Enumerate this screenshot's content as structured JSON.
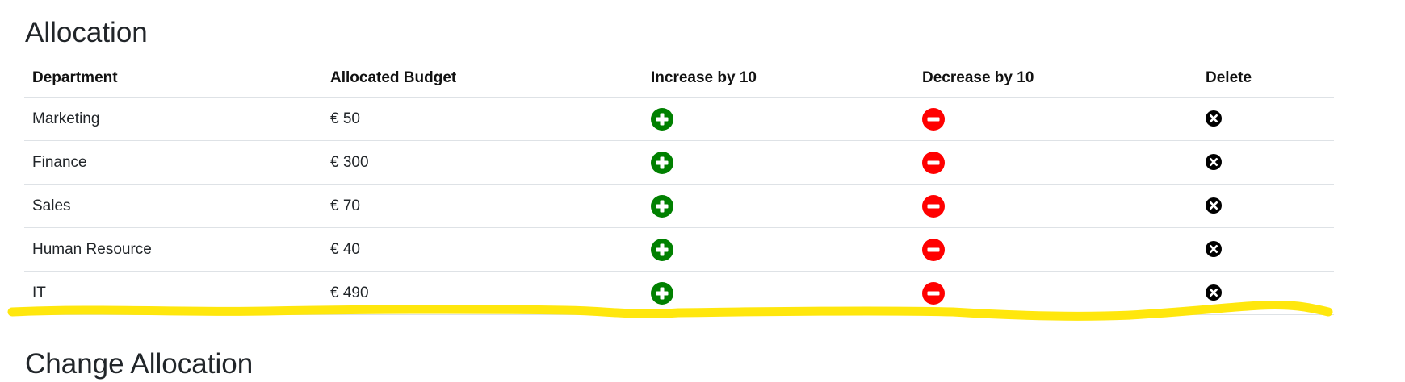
{
  "page": {
    "title": "Allocation",
    "next_section_title": "Change Allocation"
  },
  "table": {
    "headers": {
      "department": "Department",
      "budget": "Allocated Budget",
      "increase": "Increase by 10",
      "decrease": "Decrease by 10",
      "delete": "Delete"
    },
    "rows": [
      {
        "department": "Marketing",
        "budget": "€ 50"
      },
      {
        "department": "Finance",
        "budget": "€ 300"
      },
      {
        "department": "Sales",
        "budget": "€ 70"
      },
      {
        "department": "Human Resource",
        "budget": "€ 40"
      },
      {
        "department": "IT",
        "budget": "€ 490"
      }
    ]
  },
  "icons": {
    "increase": "plus-circle-icon",
    "decrease": "minus-circle-icon",
    "delete": "x-circle-icon"
  },
  "colors": {
    "increase": "#008000",
    "decrease": "#ff0000",
    "delete": "#000000",
    "highlight": "#ffe600"
  }
}
